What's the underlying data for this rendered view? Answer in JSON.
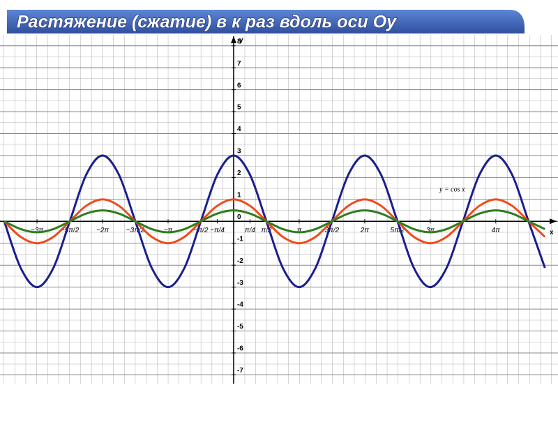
{
  "chart_data": {
    "type": "line",
    "title": "Растяжение (сжатие) в к раз вдоль оси Оу",
    "x_axis_label": "x",
    "y_axis_label": "y",
    "annotation": "y = cos x",
    "x": [
      -10.996,
      -10.21,
      -9.425,
      -8.639,
      -7.854,
      -7.069,
      -6.283,
      -5.498,
      -4.712,
      -3.927,
      -3.142,
      -2.356,
      -1.571,
      -0.785,
      0,
      0.785,
      1.571,
      2.356,
      3.142,
      3.927,
      4.712,
      5.498,
      6.283,
      7.069,
      7.854,
      8.639,
      9.425,
      10.21,
      10.996,
      11.781,
      12.566,
      13.352,
      14.137,
      14.923
    ],
    "series": [
      {
        "color": "#1a1f8c",
        "values": [
          0,
          -2.121,
          -3,
          -2.121,
          0,
          2.121,
          3,
          2.121,
          0,
          -2.121,
          -3,
          -2.121,
          0,
          2.121,
          3,
          2.121,
          0,
          -2.121,
          -3,
          -2.121,
          0,
          2.121,
          3,
          2.121,
          0,
          -2.121,
          -3,
          -2.121,
          0,
          2.121,
          3,
          2.121,
          0,
          -2.121
        ]
      },
      {
        "color": "#f04a1a",
        "values": [
          0,
          -0.707,
          -1,
          -0.707,
          0,
          0.707,
          1,
          0.707,
          0,
          -0.707,
          -1,
          -0.707,
          0,
          0.707,
          1,
          0.707,
          0,
          -0.707,
          -1,
          -0.707,
          0,
          0.707,
          1,
          0.707,
          0,
          -0.707,
          -1,
          -0.707,
          0,
          0.707,
          1,
          0.707,
          0,
          -0.707
        ]
      },
      {
        "color": "#2e7d1e",
        "values": [
          0,
          -0.354,
          -0.5,
          -0.354,
          0,
          0.354,
          0.5,
          0.354,
          0,
          -0.354,
          -0.5,
          -0.354,
          0,
          0.354,
          0.5,
          0.354,
          0,
          -0.354,
          -0.5,
          -0.354,
          0,
          0.354,
          0.5,
          0.354,
          0,
          -0.354,
          -0.5,
          -0.354,
          0,
          0.354,
          0.5,
          0.354,
          0,
          -0.354
        ]
      }
    ],
    "xlim": [
      -11.2,
      15.55
    ],
    "ylim": [
      -7.4,
      8.5
    ],
    "xticks": [
      {
        "value": -9.425,
        "label": "−3π"
      },
      {
        "value": -7.854,
        "label": "−5π/2"
      },
      {
        "value": -6.283,
        "label": "−2π"
      },
      {
        "value": -4.712,
        "label": "−3π/2"
      },
      {
        "value": -3.142,
        "label": "−π"
      },
      {
        "value": -1.571,
        "label": "−π/2"
      },
      {
        "value": -0.785,
        "label": "−π/4"
      },
      {
        "value": 0.785,
        "label": "π/4"
      },
      {
        "value": 1.571,
        "label": "π/2"
      },
      {
        "value": 3.142,
        "label": "π"
      },
      {
        "value": 4.712,
        "label": "3π/2"
      },
      {
        "value": 6.283,
        "label": "2π"
      },
      {
        "value": 7.854,
        "label": "5π/2"
      },
      {
        "value": 9.425,
        "label": "3π"
      },
      {
        "value": 12.566,
        "label": "4π"
      }
    ],
    "yticks": [
      -7,
      -6,
      -5,
      -4,
      -3,
      -2,
      -1,
      0,
      1,
      2,
      3,
      4,
      5,
      6,
      7,
      8
    ],
    "grid": true
  }
}
